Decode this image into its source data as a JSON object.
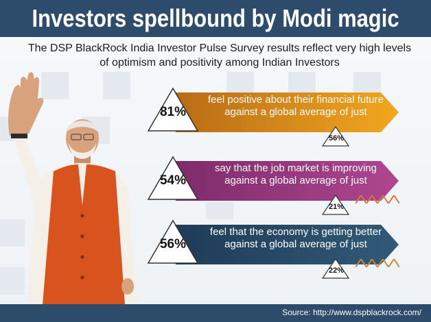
{
  "title": "Investors spellbound by Modi magic",
  "subtitle": "The DSP BlackRock India Investor Pulse Survey results reflect very high levels of optimism and positivity among Indian Investors",
  "stats": [
    {
      "percent": "81%",
      "text": "feel positive about their financial future against a global average of just",
      "global_average": "56%",
      "color": "#f0a21f"
    },
    {
      "percent": "54%",
      "text": "say that the job market is improving against a global average of just",
      "global_average": "21%",
      "color": "#a73f8b"
    },
    {
      "percent": "56%",
      "text": "feel that the economy is getting better against a global average of just",
      "global_average": "22%",
      "color": "#2d4c6c"
    }
  ],
  "source": "Source: http://www.dspblackrock.com/",
  "colors": {
    "header_bg": "#2d4c6c",
    "footer_bg": "#2d4c6c",
    "jacket": "#d9531e",
    "kurta": "#f4efe7"
  }
}
